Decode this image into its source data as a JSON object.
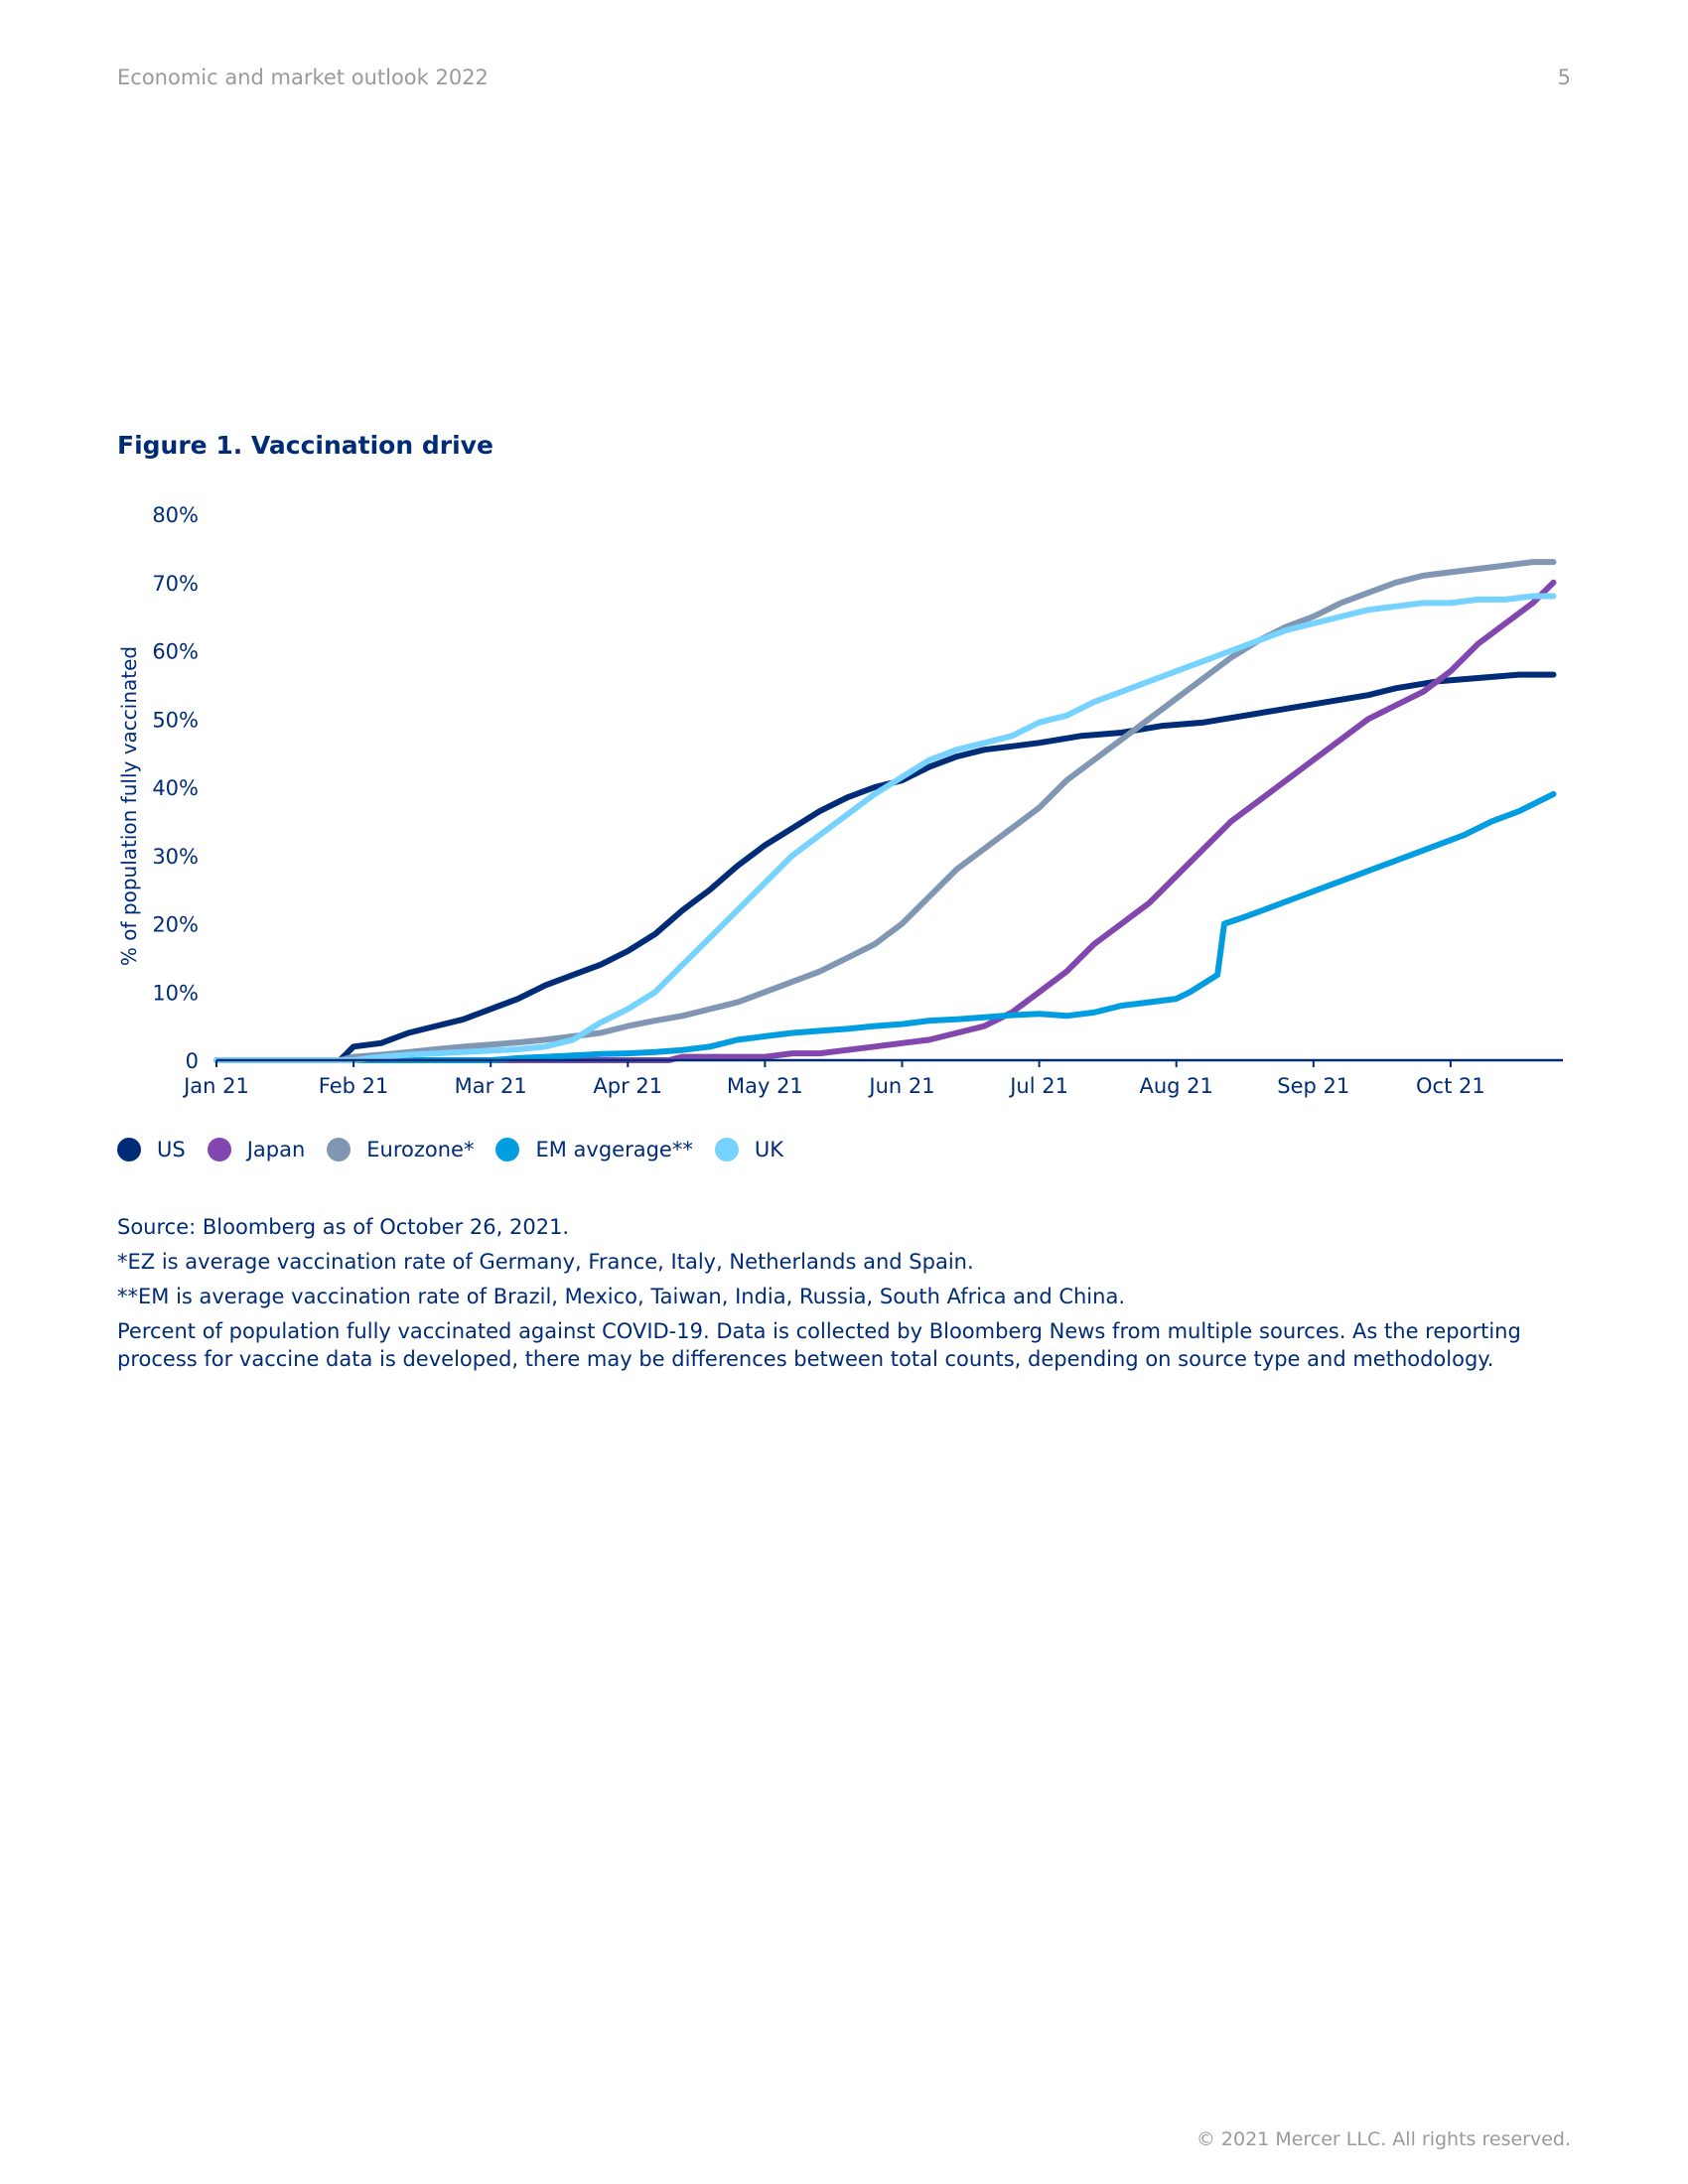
{
  "header": {
    "doc_title": "Economic and market outlook 2022",
    "page_number": "5"
  },
  "figure": {
    "title": "Figure 1. Vaccination drive"
  },
  "notes": {
    "source": "Source: Bloomberg as of October 26, 2021.",
    "ez_note": "*EZ is average vaccination rate of Germany, France, Italy, Netherlands and Spain.",
    "em_note": "**EM is average vaccination rate of Brazil, Mexico, Taiwan, India, Russia, South Africa and China.",
    "description": "Percent of population fully vaccinated against COVID-19. Data is collected by Bloomberg News from multiple sources. As the reporting process for vaccine data is developed, there may be differences between total counts, depending on source type and methodology."
  },
  "footer": {
    "copyright": "© 2021 Mercer LLC. All rights reserved."
  },
  "chart_data": {
    "type": "line",
    "title": "Figure 1. Vaccination drive",
    "xlabel": "",
    "ylabel": "% of population fully vaccinated",
    "x_ticks": [
      "Jan 21",
      "Feb 21",
      "Mar 21",
      "Apr 21",
      "May 21",
      "Jun 21",
      "Jul 21",
      "Aug 21",
      "Sep 21",
      "Oct 21"
    ],
    "y_ticks": [
      "0",
      "10%",
      "20%",
      "30%",
      "40%",
      "50%",
      "60%",
      "70%",
      "80%"
    ],
    "xlim_months": [
      0,
      9.84
    ],
    "ylim": [
      0,
      80
    ],
    "grid": false,
    "legend_position": "bottom-left",
    "series": [
      {
        "name": "US",
        "color": "#002c77",
        "x": [
          0,
          0.9,
          1.0,
          1.2,
          1.4,
          1.6,
          1.8,
          2.0,
          2.2,
          2.4,
          2.6,
          2.8,
          3.0,
          3.2,
          3.4,
          3.6,
          3.8,
          4.0,
          4.2,
          4.4,
          4.6,
          4.8,
          5.0,
          5.2,
          5.4,
          5.6,
          5.8,
          6.0,
          6.3,
          6.6,
          6.9,
          7.2,
          7.5,
          7.8,
          8.1,
          8.4,
          8.6,
          8.9,
          9.2,
          9.5,
          9.75
        ],
        "values": [
          0,
          0,
          2,
          2.5,
          4,
          5,
          6,
          7.5,
          9,
          11,
          12.5,
          14,
          16,
          18.5,
          22,
          25,
          28.5,
          31.5,
          34,
          36.5,
          38.5,
          40,
          41,
          43,
          44.5,
          45.5,
          46,
          46.5,
          47.5,
          48,
          49,
          49.5,
          50.5,
          51.5,
          52.5,
          53.5,
          54.5,
          55.5,
          56,
          56.5,
          56.5
        ]
      },
      {
        "name": "Japan",
        "color": "#8246af",
        "x": [
          0,
          3.3,
          3.4,
          3.6,
          3.8,
          4.0,
          4.2,
          4.4,
          4.6,
          4.8,
          5.0,
          5.2,
          5.4,
          5.6,
          5.8,
          6.0,
          6.2,
          6.4,
          6.6,
          6.8,
          7.0,
          7.2,
          7.4,
          7.6,
          7.8,
          8.0,
          8.2,
          8.4,
          8.6,
          8.8,
          9.0,
          9.2,
          9.4,
          9.6,
          9.75
        ],
        "values": [
          0,
          0,
          0.5,
          0.5,
          0.5,
          0.5,
          1,
          1,
          1.5,
          2,
          2.5,
          3,
          4,
          5,
          7,
          10,
          13,
          17,
          20,
          23,
          27,
          31,
          35,
          38,
          41,
          44,
          47,
          50,
          52,
          54,
          57,
          61,
          64,
          67,
          70
        ]
      },
      {
        "name": "Eurozone*",
        "color": "#8096b2",
        "x": [
          0,
          0.9,
          1.0,
          1.2,
          1.4,
          1.6,
          1.8,
          2.0,
          2.2,
          2.4,
          2.6,
          2.8,
          3.0,
          3.2,
          3.4,
          3.6,
          3.8,
          4.0,
          4.2,
          4.4,
          4.6,
          4.8,
          5.0,
          5.2,
          5.4,
          5.6,
          5.8,
          6.0,
          6.2,
          6.4,
          6.6,
          6.8,
          7.0,
          7.2,
          7.4,
          7.6,
          7.8,
          8.0,
          8.2,
          8.4,
          8.6,
          8.8,
          9.0,
          9.2,
          9.4,
          9.6,
          9.75
        ],
        "values": [
          0,
          0,
          0.5,
          0.8,
          1.2,
          1.6,
          2,
          2.3,
          2.6,
          3,
          3.5,
          4,
          5,
          5.8,
          6.5,
          7.5,
          8.5,
          10,
          11.5,
          13,
          15,
          17,
          20,
          24,
          28,
          31,
          34,
          37,
          41,
          44,
          47,
          50,
          53,
          56,
          59,
          61.5,
          63.5,
          65,
          67,
          68.5,
          70,
          71,
          71.5,
          72,
          72.5,
          73,
          73
        ]
      },
      {
        "name": "EM avgerage**",
        "color": "#009de0",
        "x": [
          0,
          2.0,
          2.2,
          2.4,
          2.6,
          2.8,
          3.0,
          3.2,
          3.4,
          3.6,
          3.8,
          4.0,
          4.2,
          4.4,
          4.6,
          4.8,
          5.0,
          5.2,
          5.4,
          5.6,
          5.8,
          6.0,
          6.2,
          6.4,
          6.6,
          6.8,
          7.0,
          7.1,
          7.3,
          7.35,
          7.5,
          7.7,
          7.9,
          8.1,
          8.3,
          8.5,
          8.7,
          8.9,
          9.1,
          9.3,
          9.5,
          9.75
        ],
        "values": [
          0,
          0,
          0.3,
          0.5,
          0.7,
          0.9,
          1,
          1.2,
          1.5,
          2,
          3,
          3.5,
          4,
          4.3,
          4.6,
          5,
          5.3,
          5.8,
          6,
          6.3,
          6.6,
          6.8,
          6.5,
          7,
          8,
          8.5,
          9,
          10,
          12.5,
          20,
          21,
          22.5,
          24,
          25.5,
          27,
          28.5,
          30,
          31.5,
          33,
          35,
          36.5,
          39
        ]
      },
      {
        "name": "UK",
        "color": "#76d3ff",
        "x": [
          0,
          1.0,
          1.2,
          1.4,
          1.6,
          1.8,
          2.0,
          2.2,
          2.4,
          2.6,
          2.8,
          3.0,
          3.2,
          3.4,
          3.6,
          3.8,
          4.0,
          4.2,
          4.4,
          4.6,
          4.8,
          5.0,
          5.2,
          5.4,
          5.6,
          5.8,
          6.0,
          6.2,
          6.4,
          6.6,
          6.8,
          7.0,
          7.2,
          7.4,
          7.6,
          7.8,
          8.0,
          8.2,
          8.4,
          8.6,
          8.8,
          9.0,
          9.2,
          9.4,
          9.6,
          9.75
        ],
        "values": [
          0,
          0,
          0.5,
          0.8,
          1,
          1.2,
          1.4,
          1.6,
          2,
          3,
          5.5,
          7.5,
          10,
          14,
          18,
          22,
          26,
          30,
          33,
          36,
          39,
          41.5,
          44,
          45.5,
          46.5,
          47.5,
          49.5,
          50.5,
          52.5,
          54,
          55.5,
          57,
          58.5,
          60,
          61.5,
          63,
          64,
          65,
          66,
          66.5,
          67,
          67,
          67.5,
          67.5,
          68,
          68
        ]
      }
    ]
  }
}
